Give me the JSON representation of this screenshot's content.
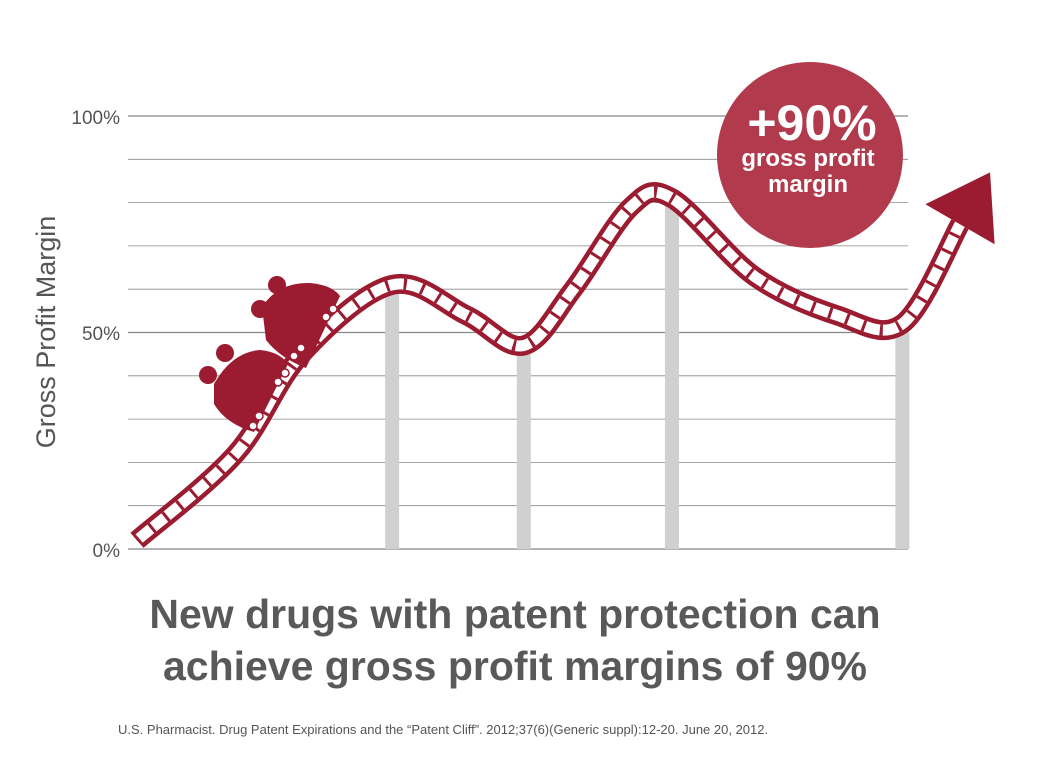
{
  "chart_data": {
    "type": "line",
    "ylabel": "Gross Profit Margin",
    "xlabel": "",
    "y_ticks": [
      "100%",
      "50%",
      "0%"
    ],
    "ylim": [
      0,
      100
    ],
    "grid": true,
    "callout": {
      "value": "+90%",
      "label_line1": "gross profit",
      "label_line2": "margin"
    },
    "support_bars": [
      {
        "x": 0.31,
        "value": 60
      },
      {
        "x": 0.47,
        "value": 45
      },
      {
        "x": 0.65,
        "value": 80
      },
      {
        "x": 0.93,
        "value": 50
      }
    ],
    "series": [
      {
        "values": [
          [
            0.0,
            2
          ],
          [
            0.12,
            22
          ],
          [
            0.2,
            45
          ],
          [
            0.31,
            61
          ],
          [
            0.4,
            54
          ],
          [
            0.47,
            47
          ],
          [
            0.53,
            60
          ],
          [
            0.6,
            79
          ],
          [
            0.65,
            81
          ],
          [
            0.75,
            63
          ],
          [
            0.85,
            54
          ],
          [
            0.93,
            52
          ],
          [
            1.0,
            75
          ]
        ]
      }
    ],
    "colors": {
      "track": "#9b1b30",
      "support": "#d0d0d0",
      "grid": "#888888",
      "badge": "#b13a4d"
    }
  },
  "headline": {
    "line1": "New drugs with patent protection can",
    "line2": "achieve gross profit margins of 90%"
  },
  "source": "U.S. Pharmacist. Drug Patent Expirations and the “Patent Cliff”. 2012;37(6)(Generic suppl):12-20. June 20, 2012."
}
